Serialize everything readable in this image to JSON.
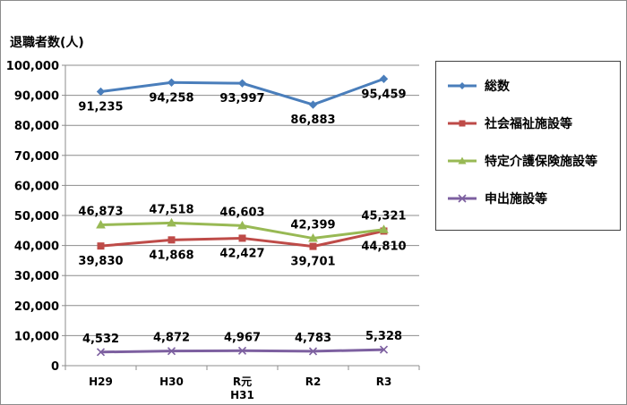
{
  "chart_data": {
    "type": "line",
    "ylabel": "退職者数(人)",
    "categories": [
      [
        "H29"
      ],
      [
        "H30"
      ],
      [
        "R元",
        "H31"
      ],
      [
        "R2"
      ],
      [
        "R3"
      ]
    ],
    "ylim": [
      0,
      100000
    ],
    "yticks": [
      0,
      10000,
      20000,
      30000,
      40000,
      50000,
      60000,
      70000,
      80000,
      90000,
      100000
    ],
    "ytick_labels": [
      "0",
      "10,000",
      "20,000",
      "30,000",
      "40,000",
      "50,000",
      "60,000",
      "70,000",
      "80,000",
      "90,000",
      "100,000"
    ],
    "grid": true,
    "legend_position": "right",
    "series": [
      {
        "name": "総数",
        "color": "#4a7ebb",
        "marker": "diamond",
        "values": [
          91235,
          94258,
          93997,
          86883,
          95459
        ],
        "labels": [
          "91,235",
          "94,258",
          "93,997",
          "86,883",
          "95,459"
        ],
        "label_side": "below"
      },
      {
        "name": "社会福祉施設等",
        "color": "#be4b48",
        "marker": "square",
        "values": [
          39830,
          41868,
          42427,
          39701,
          44810
        ],
        "labels": [
          "39,830",
          "41,868",
          "42,427",
          "39,701",
          "44,810"
        ],
        "label_side": "below"
      },
      {
        "name": "特定介護保険施設等",
        "color": "#98b954",
        "marker": "triangle",
        "values": [
          46873,
          47518,
          46603,
          42399,
          45321
        ],
        "labels": [
          "46,873",
          "47,518",
          "46,603",
          "42,399",
          "45,321"
        ],
        "label_side": "above"
      },
      {
        "name": "申出施設等",
        "color": "#7d60a0",
        "marker": "x",
        "values": [
          4532,
          4872,
          4967,
          4783,
          5328
        ],
        "labels": [
          "4,532",
          "4,872",
          "4,967",
          "4,783",
          "5,328"
        ],
        "label_side": "above"
      }
    ]
  }
}
